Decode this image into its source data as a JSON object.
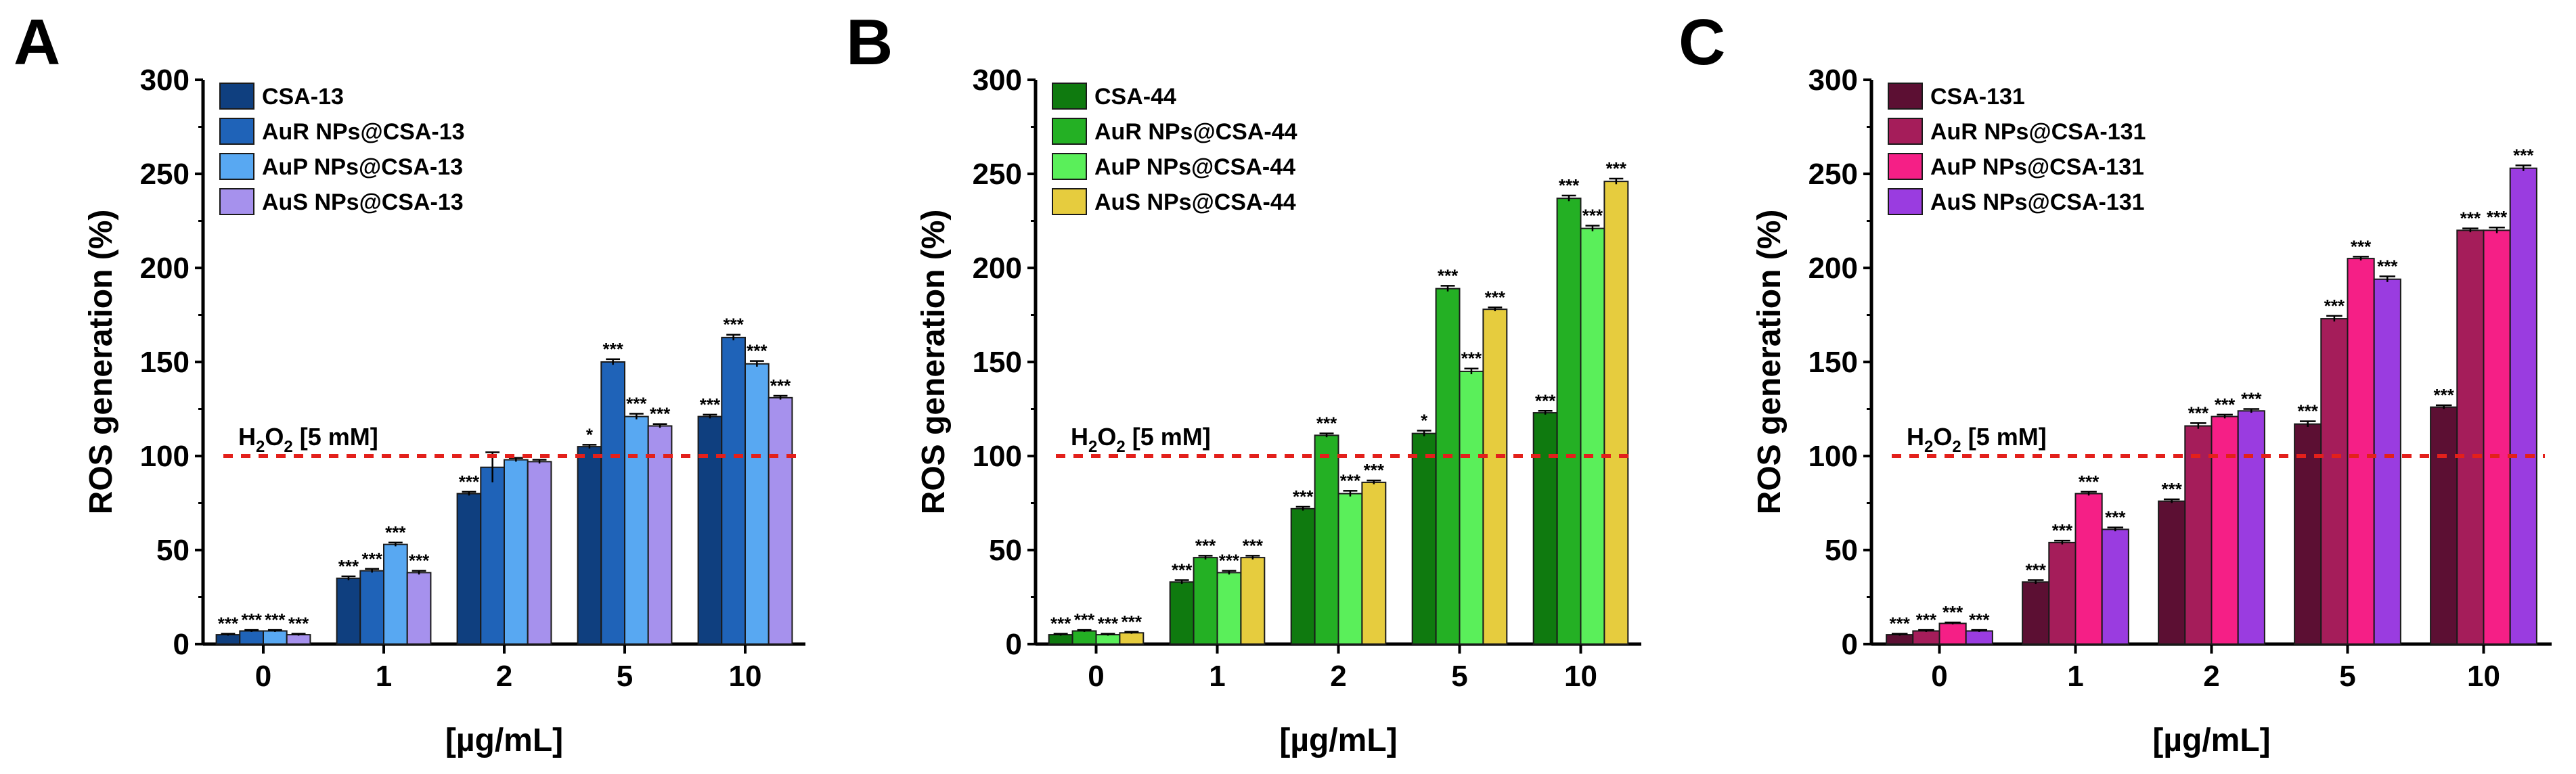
{
  "chart_data": [
    {
      "type": "bar",
      "panel_label": "A",
      "categories": [
        "0",
        "1",
        "2",
        "5",
        "10"
      ],
      "xlabel": "[µg/mL]",
      "ylabel": "ROS generation (%)",
      "ylim": [
        0,
        300
      ],
      "yticks": [
        "0",
        "50",
        "100",
        "150",
        "200",
        "250",
        "300"
      ],
      "reference_line": {
        "value": 100,
        "label_main": "H",
        "label_sub": "2",
        "label_mid": "O",
        "label_sub2": "2",
        "label_tail": " [5 mM]",
        "color": "#e3201b"
      },
      "series": [
        {
          "name": "CSA-13",
          "color": "#0f3f7f",
          "values": [
            5,
            35,
            80,
            105,
            121
          ],
          "errors": [
            0.5,
            1,
            1,
            1,
            1
          ],
          "sig": [
            "***",
            "***",
            "***",
            "*",
            "***"
          ]
        },
        {
          "name": "AuR NPs@CSA-13",
          "color": "#1f63b8",
          "values": [
            7,
            39,
            94,
            150,
            163
          ],
          "errors": [
            0.5,
            1,
            8,
            1.5,
            1.5
          ],
          "sig": [
            "***",
            "***",
            "",
            "***",
            "***"
          ]
        },
        {
          "name": "AuP NPs@CSA-13",
          "color": "#58a8f2",
          "values": [
            7,
            53,
            98,
            121,
            149
          ],
          "errors": [
            0.5,
            1,
            1,
            1.5,
            1.5
          ],
          "sig": [
            "***",
            "***",
            "",
            "***",
            "***"
          ]
        },
        {
          "name": "AuS NPs@CSA-13",
          "color": "#a691ed",
          "values": [
            5,
            38,
            97,
            116,
            131
          ],
          "errors": [
            0.5,
            1,
            1,
            1,
            1
          ],
          "sig": [
            "***",
            "***",
            "",
            "***",
            "***"
          ]
        }
      ]
    },
    {
      "type": "bar",
      "panel_label": "B",
      "categories": [
        "0",
        "1",
        "2",
        "5",
        "10"
      ],
      "xlabel": "[µg/mL]",
      "ylabel": "ROS generation (%)",
      "ylim": [
        0,
        300
      ],
      "yticks": [
        "0",
        "50",
        "100",
        "150",
        "200",
        "250",
        "300"
      ],
      "reference_line": {
        "value": 100,
        "label_main": "H",
        "label_sub": "2",
        "label_mid": "O",
        "label_sub2": "2",
        "label_tail": " [5 mM]",
        "color": "#e3201b"
      },
      "series": [
        {
          "name": "CSA-44",
          "color": "#0f7a0f",
          "values": [
            5,
            33,
            72,
            112,
            123
          ],
          "errors": [
            0.5,
            1,
            1,
            1.5,
            1
          ],
          "sig": [
            "***",
            "***",
            "***",
            "*",
            "***"
          ]
        },
        {
          "name": "AuR NPs@CSA-44",
          "color": "#24b024",
          "values": [
            7,
            46,
            111,
            189,
            237
          ],
          "errors": [
            0.5,
            1,
            1,
            1.5,
            1.5
          ],
          "sig": [
            "***",
            "***",
            "***",
            "***",
            "***"
          ]
        },
        {
          "name": "AuP NPs@CSA-44",
          "color": "#5aef5a",
          "values": [
            5,
            38,
            80,
            145,
            221
          ],
          "errors": [
            0.5,
            1,
            1.5,
            1.5,
            1.5
          ],
          "sig": [
            "***",
            "***",
            "***",
            "***",
            "***"
          ]
        },
        {
          "name": "AuS NPs@CSA-44",
          "color": "#e6cc3e",
          "values": [
            6,
            46,
            86,
            178,
            246
          ],
          "errors": [
            0.5,
            1,
            1,
            1,
            1.5
          ],
          "sig": [
            "***",
            "***",
            "***",
            "***",
            "***"
          ]
        }
      ]
    },
    {
      "type": "bar",
      "panel_label": "C",
      "categories": [
        "0",
        "1",
        "2",
        "5",
        "10"
      ],
      "xlabel": "[µg/mL]",
      "ylabel": "ROS generation (%)",
      "ylim": [
        0,
        300
      ],
      "yticks": [
        "0",
        "50",
        "100",
        "150",
        "200",
        "250",
        "300"
      ],
      "reference_line": {
        "value": 100,
        "label_main": "H",
        "label_sub": "2",
        "label_mid": "O",
        "label_sub2": "2",
        "label_tail": " [5 mM]",
        "color": "#e3201b"
      },
      "series": [
        {
          "name": "CSA-131",
          "color": "#5c0f33",
          "values": [
            5,
            33,
            76,
            117,
            126
          ],
          "errors": [
            0.5,
            1,
            1,
            1.5,
            1
          ],
          "sig": [
            "***",
            "***",
            "***",
            "***",
            "***"
          ]
        },
        {
          "name": "AuR NPs@CSA-131",
          "color": "#a51d5a",
          "values": [
            7,
            54,
            116,
            173,
            220
          ],
          "errors": [
            0.5,
            1,
            1.5,
            1.5,
            1
          ],
          "sig": [
            "***",
            "***",
            "***",
            "***",
            "***"
          ]
        },
        {
          "name": "AuP NPs@CSA-131",
          "color": "#f51f86",
          "values": [
            11,
            80,
            121,
            205,
            220
          ],
          "errors": [
            0.5,
            1,
            1,
            1,
            1.5
          ],
          "sig": [
            "***",
            "***",
            "***",
            "***",
            "***"
          ]
        },
        {
          "name": "AuS NPs@CSA-131",
          "color": "#9a3ce0",
          "values": [
            7,
            61,
            124,
            194,
            253
          ],
          "errors": [
            0.5,
            1,
            1,
            1.5,
            1.5
          ],
          "sig": [
            "***",
            "***",
            "***",
            "***",
            "***"
          ]
        }
      ]
    }
  ]
}
